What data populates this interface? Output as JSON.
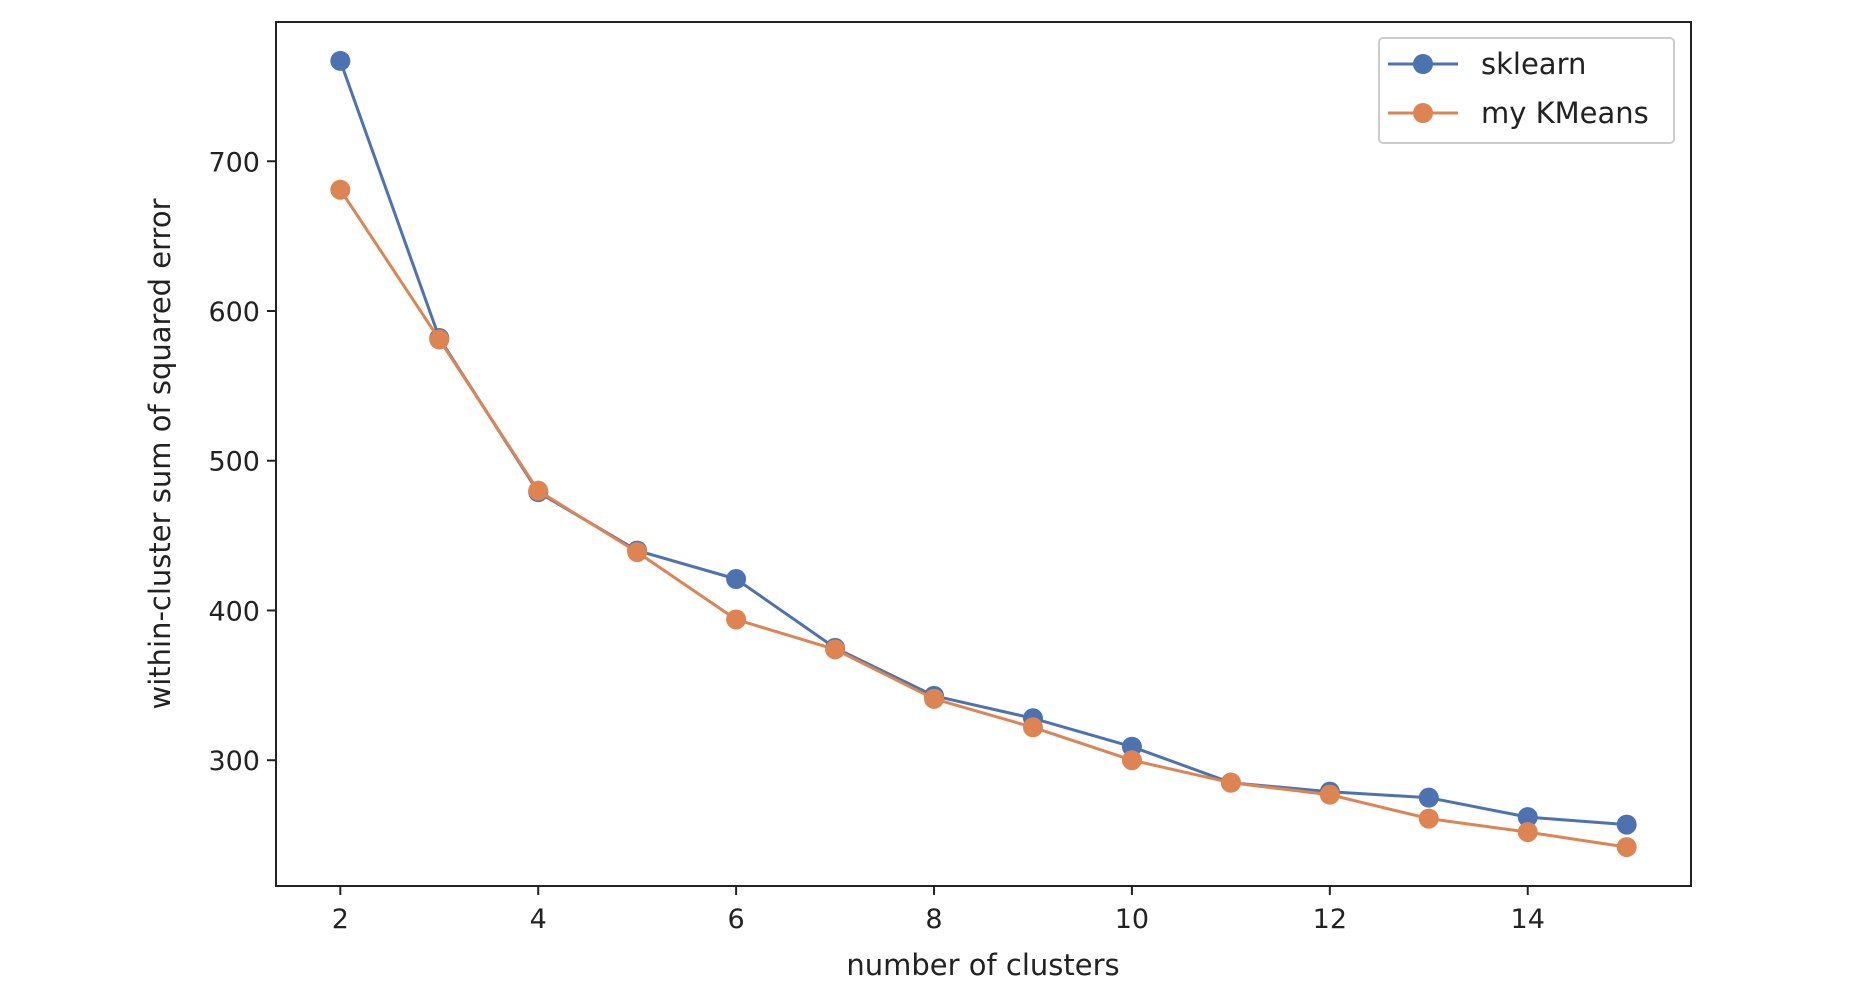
{
  "chart_data": {
    "type": "line",
    "title": "",
    "xlabel": "number of clusters",
    "ylabel": "within-cluster sum of squared error",
    "x": [
      2,
      3,
      4,
      5,
      6,
      7,
      8,
      9,
      10,
      11,
      12,
      13,
      14,
      15
    ],
    "xlim": [
      1.35,
      15.65
    ],
    "ylim": [
      216,
      793
    ],
    "xticks": [
      2,
      4,
      6,
      8,
      10,
      12,
      14
    ],
    "yticks": [
      300,
      400,
      500,
      600,
      700
    ],
    "grid": false,
    "legend_position": "top-right",
    "series": [
      {
        "name": "sklearn",
        "color": "#4c72b0",
        "marker": "circle",
        "values": [
          767,
          582,
          479,
          440,
          421,
          375,
          343,
          328,
          309,
          285,
          279,
          275,
          262,
          257
        ]
      },
      {
        "name": "my KMeans",
        "color": "#dd8452",
        "marker": "circle",
        "values": [
          681,
          581,
          480,
          439,
          394,
          374,
          341,
          322,
          300,
          285,
          277,
          261,
          252,
          242
        ]
      }
    ]
  }
}
